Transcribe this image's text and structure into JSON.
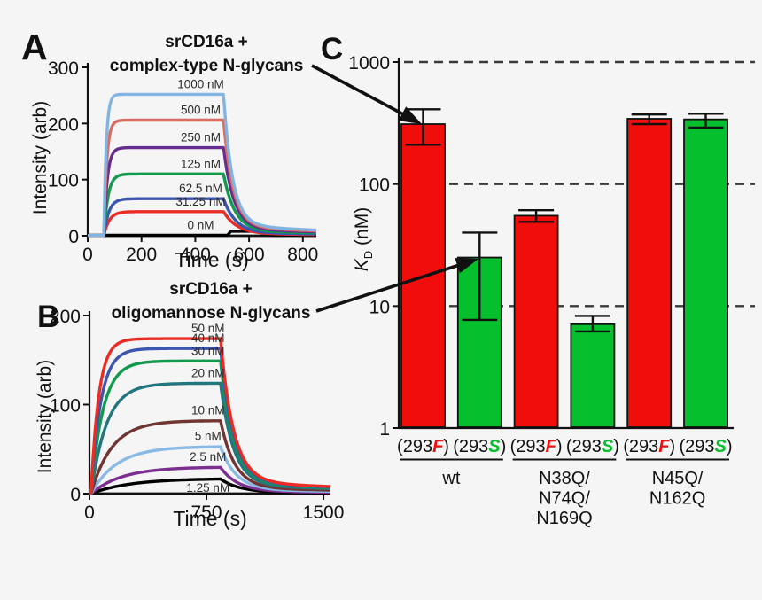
{
  "figure": {
    "background": "#f5f5f6"
  },
  "panel_a": {
    "letter": "A",
    "title_line1": "srCD16a +",
    "title_line2": "complex-type N-glycans",
    "ylabel": "Intensity (arb)",
    "xlabel": "Time (s)"
  },
  "panel_b": {
    "letter": "B",
    "title_line1": "srCD16a +",
    "title_line2": "oligomannose N-glycans",
    "ylabel": "Intensity (arb)",
    "xlabel": "Time (s)"
  },
  "panel_c": {
    "letter": "C",
    "ylabel_k": "K",
    "ylabel_sub": "D",
    "ylabel_unit": " (nM)"
  },
  "links": [
    {
      "from": "complex-type N-glycans sensorgram",
      "to": "wt (293F) bar"
    },
    {
      "from": "oligomannose N-glycans sensorgram",
      "to": "wt (293S) bar"
    }
  ],
  "chart_data": [
    {
      "type": "line",
      "panel": "A",
      "title": "srCD16a + complex-type N-glycans",
      "xlabel": "Time (s)",
      "ylabel": "Intensity (arb)",
      "xlim": [
        0,
        850
      ],
      "ylim": [
        0,
        300
      ],
      "xticks": [
        0,
        200,
        400,
        600,
        800
      ],
      "yticks": [
        0,
        100,
        200,
        300
      ],
      "association_start_s": 60,
      "dissociation_start_s": 505,
      "label_t": 420,
      "series": [
        {
          "label": "1000 nM",
          "color": "#82b4e1",
          "plateau": 252,
          "k_on": 0.115,
          "k_off": 0.03
        },
        {
          "label": "500 nM",
          "color": "#d96d63",
          "plateau": 206,
          "k_on": 0.095,
          "k_off": 0.028
        },
        {
          "label": "250 nM",
          "color": "#662d91",
          "plateau": 157,
          "k_on": 0.08,
          "k_off": 0.026
        },
        {
          "label": "125 nM",
          "color": "#119a4e",
          "plateau": 110,
          "k_on": 0.065,
          "k_off": 0.024
        },
        {
          "label": "62.5 nM",
          "color": "#3c55af",
          "plateau": 66,
          "k_on": 0.055,
          "k_off": 0.022
        },
        {
          "label": "31.25 nM",
          "color": "#ea2c24",
          "plateau": 43,
          "k_on": 0.05,
          "k_off": 0.02
        },
        {
          "label": "0 nM",
          "color": "#000000",
          "plateau": 1,
          "k_on": 0.05,
          "k_off": 0.02,
          "bump": [
            520,
            680,
            7
          ]
        }
      ]
    },
    {
      "type": "line",
      "panel": "B",
      "title": "srCD16a + oligomannose N-glycans",
      "xlabel": "Time (s)",
      "ylabel": "Intensity (arb)",
      "xlim": [
        0,
        1545
      ],
      "ylim": [
        0,
        200
      ],
      "xticks": [
        0,
        750,
        1500
      ],
      "yticks": [
        0,
        100,
        200
      ],
      "association_start_s": 10,
      "dissociation_start_s": 840,
      "label_t": 760,
      "series": [
        {
          "label": "50 nM",
          "color": "#ea2c24",
          "plateau": 174,
          "k_on": 0.02,
          "k_off": 0.012
        },
        {
          "label": "40 nM",
          "color": "#3c55af",
          "plateau": 163,
          "k_on": 0.016,
          "k_off": 0.012
        },
        {
          "label": "30 nM",
          "color": "#119a4e",
          "plateau": 149,
          "k_on": 0.013,
          "k_off": 0.012
        },
        {
          "label": "20 nM",
          "color": "#23767f",
          "plateau": 124,
          "k_on": 0.01,
          "k_off": 0.012
        },
        {
          "label": "10 nM",
          "color": "#703432",
          "plateau": 82,
          "k_on": 0.0075,
          "k_off": 0.011
        },
        {
          "label": "5 nM",
          "color": "#8ab9e6",
          "plateau": 53,
          "k_on": 0.006,
          "k_off": 0.01
        },
        {
          "label": "2.5 nM",
          "color": "#7c2f91",
          "plateau": 30,
          "k_on": 0.005,
          "k_off": 0.009
        },
        {
          "label": "1.25 nM",
          "color": "#000000",
          "plateau": 17,
          "k_on": 0.004,
          "k_off": 0.008,
          "label_dy": 15
        }
      ]
    },
    {
      "type": "bar",
      "panel": "C",
      "ylabel": "KD (nM)",
      "yscale": "log",
      "ylim": [
        1,
        1000
      ],
      "yticks": [
        1,
        10,
        100,
        1000
      ],
      "dashed_gridlines": [
        10,
        100,
        1000
      ],
      "bar_colors": {
        "293F": "#f20d0d",
        "293S": "#05c02c"
      },
      "groups": [
        {
          "name": "wt",
          "label_lines": [
            "wt"
          ],
          "bars": [
            {
              "cell_line": "293F",
              "label_prefix": "(293",
              "label_letter": "F",
              "label_suffix": ")",
              "letter_color": "#f20d0d",
              "color": "#f20d0d",
              "value": 310,
              "err_lo": 210,
              "err_hi": 410
            },
            {
              "cell_line": "293S",
              "label_prefix": "(293",
              "label_letter": "S",
              "label_suffix": ")",
              "letter_color": "#05c02c",
              "color": "#05c02c",
              "value": 25,
              "err_lo": 7.7,
              "err_hi": 40
            }
          ]
        },
        {
          "name": "N38Q/N74Q/N169Q",
          "label_lines": [
            "N38Q/",
            "N74Q/",
            "N169Q"
          ],
          "bars": [
            {
              "cell_line": "293F",
              "label_prefix": "(293",
              "label_letter": "F",
              "label_suffix": ")",
              "letter_color": "#f20d0d",
              "color": "#f20d0d",
              "value": 55,
              "err_lo": 49,
              "err_hi": 61
            },
            {
              "cell_line": "293S",
              "label_prefix": "(293",
              "label_letter": "S",
              "label_suffix": ")",
              "letter_color": "#05c02c",
              "color": "#05c02c",
              "value": 7.1,
              "err_lo": 6.2,
              "err_hi": 8.3
            }
          ]
        },
        {
          "name": "N45Q/N162Q",
          "label_lines": [
            "N45Q/",
            "N162Q"
          ],
          "bars": [
            {
              "cell_line": "293F",
              "label_prefix": "(293",
              "label_letter": "F",
              "label_suffix": ")",
              "letter_color": "#f20d0d",
              "color": "#f20d0d",
              "value": 343,
              "err_lo": 310,
              "err_hi": 372
            },
            {
              "cell_line": "293S",
              "label_prefix": "(293",
              "label_letter": "S",
              "label_suffix": ")",
              "letter_color": "#05c02c",
              "color": "#05c02c",
              "value": 339,
              "err_lo": 290,
              "err_hi": 377
            }
          ]
        }
      ]
    }
  ]
}
